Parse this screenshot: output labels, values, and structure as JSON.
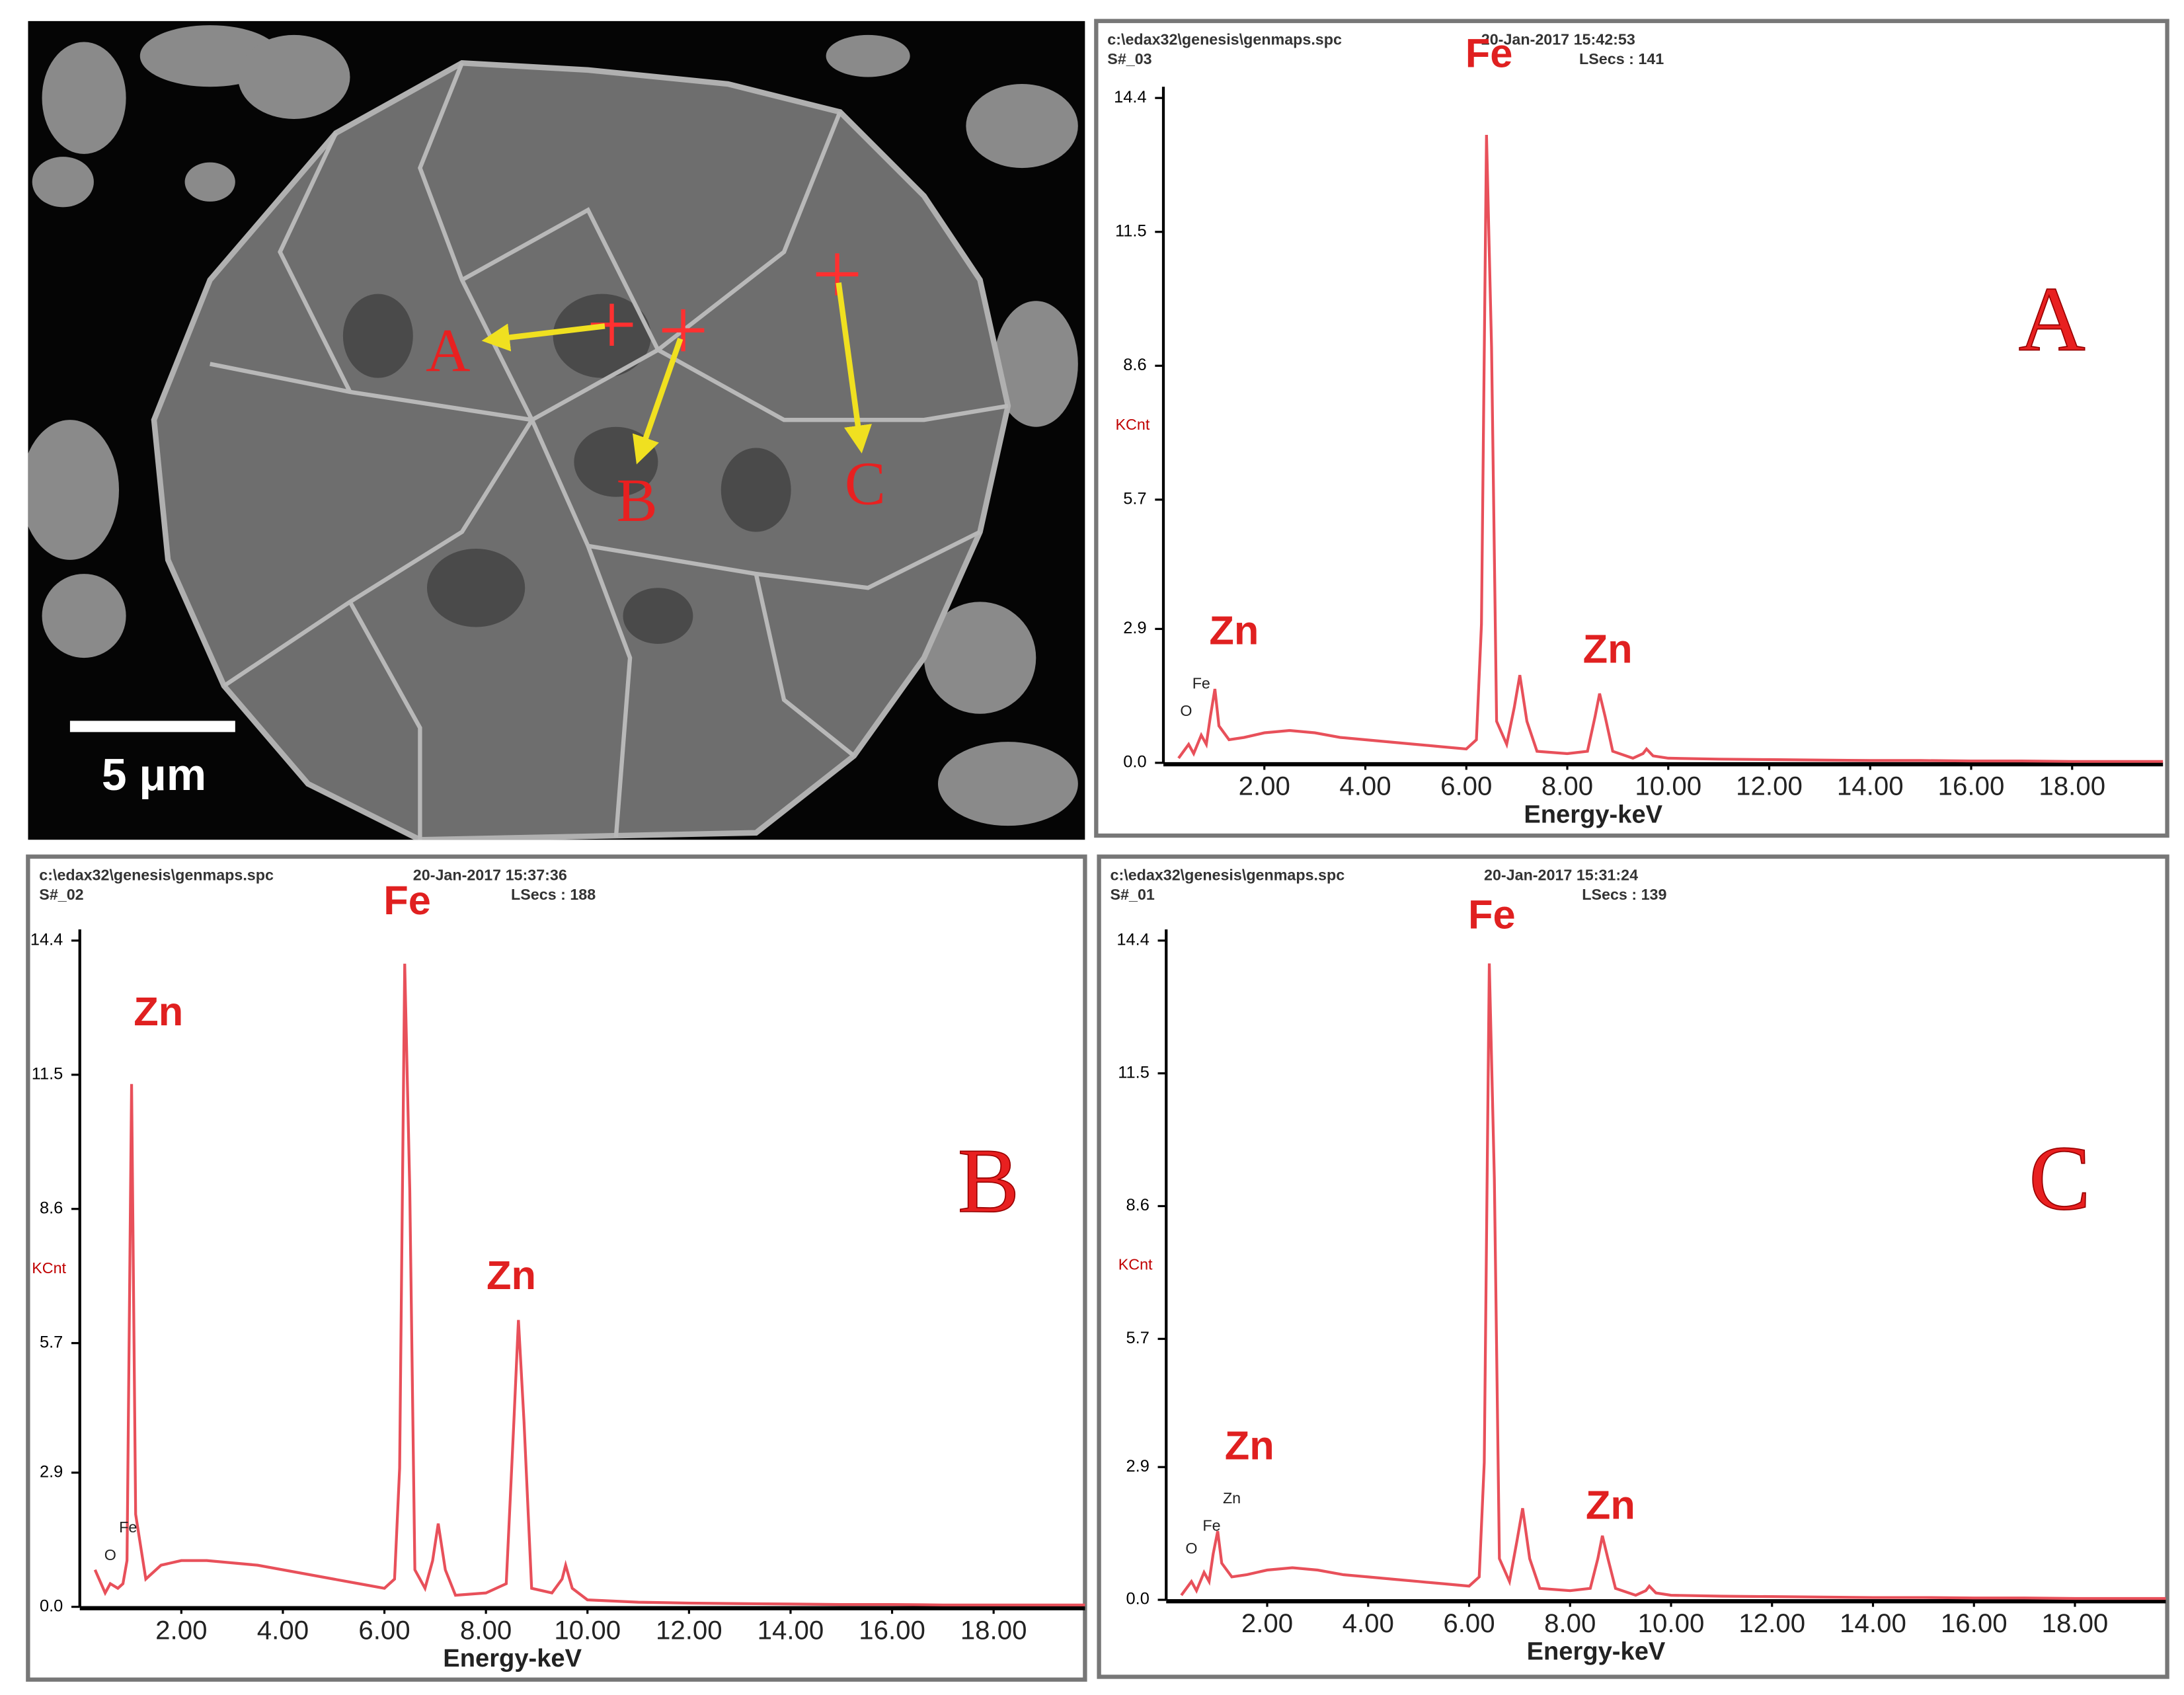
{
  "micrograph": {
    "points": [
      "A",
      "B",
      "C"
    ],
    "scale_bar": "5 μm"
  },
  "chart_data": [
    {
      "type": "line",
      "file": "c:\\edax32\\genesis\\genmaps.spc",
      "date": "20-Jan-2017 15:42:53",
      "sample": "S#_03",
      "lsecs": "LSecs : 141",
      "panel_label": "A",
      "ylabel": "KCnt",
      "xlabel": "Energy-keV",
      "color": "#e8505a",
      "annotations": [
        "Fe",
        "Zn",
        "Zn",
        "Fe",
        "O"
      ],
      "x": [
        0.3,
        0.5,
        0.6,
        0.75,
        0.85,
        0.93,
        1.02,
        1.1,
        1.3,
        1.6,
        2.0,
        2.5,
        3.0,
        3.5,
        4.0,
        4.5,
        5.0,
        5.5,
        6.0,
        6.2,
        6.3,
        6.4,
        6.5,
        6.6,
        6.8,
        6.95,
        7.06,
        7.2,
        7.4,
        8.0,
        8.4,
        8.55,
        8.64,
        8.75,
        8.9,
        9.3,
        9.5,
        9.57,
        9.7,
        10.0,
        11,
        12,
        13,
        14,
        15,
        16,
        17,
        18,
        19,
        19.8
      ],
      "values": [
        0.1,
        0.4,
        0.2,
        0.6,
        0.4,
        1.0,
        1.6,
        0.8,
        0.5,
        0.55,
        0.65,
        0.7,
        0.65,
        0.55,
        0.5,
        0.45,
        0.4,
        0.35,
        0.3,
        0.5,
        3.0,
        13.6,
        9.0,
        0.9,
        0.4,
        1.2,
        1.9,
        0.9,
        0.25,
        0.2,
        0.25,
        1.0,
        1.5,
        1.0,
        0.25,
        0.1,
        0.2,
        0.3,
        0.15,
        0.1,
        0.08,
        0.07,
        0.06,
        0.05,
        0.05,
        0.04,
        0.04,
        0.03,
        0.03,
        0.03
      ],
      "xlim": [
        0,
        19.8
      ],
      "ylim": [
        0,
        14.4
      ],
      "xticks": [
        {
          "value": 2,
          "label": "2.00"
        },
        {
          "value": 4,
          "label": "4.00"
        },
        {
          "value": 6,
          "label": "6.00"
        },
        {
          "value": 8,
          "label": "8.00"
        },
        {
          "value": 10,
          "label": "10.00"
        },
        {
          "value": 12,
          "label": "12.00"
        },
        {
          "value": 14,
          "label": "14.00"
        },
        {
          "value": 16,
          "label": "16.00"
        },
        {
          "value": 18,
          "label": "18.00"
        }
      ],
      "yticks": [
        {
          "value": 0,
          "label": "0.0"
        },
        2.9,
        5.7,
        8.6,
        11.5,
        14.4
      ]
    },
    {
      "type": "line",
      "file": "c:\\edax32\\genesis\\genmaps.spc",
      "date": "20-Jan-2017 15:37:36",
      "sample": "S#_02",
      "lsecs": "LSecs : 188",
      "panel_label": "B",
      "ylabel": "KCnt",
      "xlabel": "Energy-keV",
      "color": "#e8505a",
      "annotations": [
        "Fe",
        "Zn",
        "Zn",
        "Fe",
        "O"
      ],
      "x": [
        0.3,
        0.5,
        0.6,
        0.75,
        0.85,
        0.93,
        1.02,
        1.1,
        1.3,
        1.6,
        2.0,
        2.5,
        3.0,
        3.5,
        4.0,
        4.5,
        5.0,
        5.5,
        6.0,
        6.2,
        6.3,
        6.4,
        6.5,
        6.6,
        6.8,
        6.95,
        7.06,
        7.2,
        7.4,
        8.0,
        8.4,
        8.55,
        8.64,
        8.75,
        8.9,
        9.3,
        9.5,
        9.57,
        9.7,
        10.0,
        11,
        12,
        13,
        14,
        15,
        16,
        17,
        18,
        19,
        19.8
      ],
      "values": [
        0.8,
        0.3,
        0.5,
        0.4,
        0.5,
        1.0,
        11.3,
        2.0,
        0.6,
        0.9,
        1.0,
        1.0,
        0.95,
        0.9,
        0.8,
        0.7,
        0.6,
        0.5,
        0.4,
        0.6,
        3.0,
        13.9,
        9.0,
        0.8,
        0.4,
        1.0,
        1.8,
        0.8,
        0.25,
        0.3,
        0.5,
        4.0,
        6.2,
        4.0,
        0.4,
        0.3,
        0.6,
        0.9,
        0.4,
        0.15,
        0.1,
        0.08,
        0.07,
        0.06,
        0.05,
        0.05,
        0.04,
        0.04,
        0.04,
        0.04
      ],
      "xlim": [
        0,
        19.8
      ],
      "ylim": [
        0,
        14.4
      ],
      "xticks": [
        {
          "value": 2,
          "label": "2.00"
        },
        {
          "value": 4,
          "label": "4.00"
        },
        {
          "value": 6,
          "label": "6.00"
        },
        {
          "value": 8,
          "label": "8.00"
        },
        {
          "value": 10,
          "label": "10.00"
        },
        {
          "value": 12,
          "label": "12.00"
        },
        {
          "value": 14,
          "label": "14.00"
        },
        {
          "value": 16,
          "label": "16.00"
        },
        {
          "value": 18,
          "label": "18.00"
        }
      ],
      "yticks": [
        {
          "value": 0,
          "label": "0.0"
        },
        2.9,
        5.7,
        8.6,
        11.5,
        14.4
      ]
    },
    {
      "type": "line",
      "file": "c:\\edax32\\genesis\\genmaps.spc",
      "date": "20-Jan-2017 15:31:24",
      "sample": "S#_01",
      "lsecs": "LSecs : 139",
      "panel_label": "C",
      "ylabel": "KCnt",
      "xlabel": "Energy-keV",
      "color": "#e8505a",
      "annotations": [
        "Fe",
        "Zn",
        "Zn",
        "Zn",
        "Fe",
        "O"
      ],
      "x": [
        0.3,
        0.5,
        0.6,
        0.75,
        0.85,
        0.93,
        1.02,
        1.1,
        1.3,
        1.6,
        2.0,
        2.5,
        3.0,
        3.5,
        4.0,
        4.5,
        5.0,
        5.5,
        6.0,
        6.2,
        6.3,
        6.4,
        6.5,
        6.6,
        6.8,
        6.95,
        7.06,
        7.2,
        7.4,
        8.0,
        8.4,
        8.55,
        8.64,
        8.75,
        8.9,
        9.3,
        9.5,
        9.57,
        9.7,
        10.0,
        11,
        12,
        13,
        14,
        15,
        16,
        17,
        18,
        19,
        19.8
      ],
      "values": [
        0.1,
        0.4,
        0.2,
        0.6,
        0.4,
        1.0,
        1.5,
        0.8,
        0.5,
        0.55,
        0.65,
        0.7,
        0.65,
        0.55,
        0.5,
        0.45,
        0.4,
        0.35,
        0.3,
        0.5,
        3.0,
        13.9,
        9.2,
        0.9,
        0.4,
        1.3,
        2.0,
        0.9,
        0.25,
        0.2,
        0.25,
        0.9,
        1.4,
        0.9,
        0.25,
        0.1,
        0.2,
        0.3,
        0.15,
        0.1,
        0.08,
        0.07,
        0.06,
        0.05,
        0.05,
        0.04,
        0.04,
        0.03,
        0.03,
        0.03
      ],
      "xlim": [
        0,
        19.8
      ],
      "ylim": [
        0,
        14.4
      ],
      "xticks": [
        {
          "value": 2,
          "label": "2.00"
        },
        {
          "value": 4,
          "label": "4.00"
        },
        {
          "value": 6,
          "label": "6.00"
        },
        {
          "value": 8,
          "label": "8.00"
        },
        {
          "value": 10,
          "label": "10.00"
        },
        {
          "value": 12,
          "label": "12.00"
        },
        {
          "value": 14,
          "label": "14.00"
        },
        {
          "value": 16,
          "label": "16.00"
        },
        {
          "value": 18,
          "label": "18.00"
        }
      ],
      "yticks": [
        {
          "value": 0,
          "label": "0.0"
        },
        2.9,
        5.7,
        8.6,
        11.5,
        14.4
      ]
    }
  ]
}
